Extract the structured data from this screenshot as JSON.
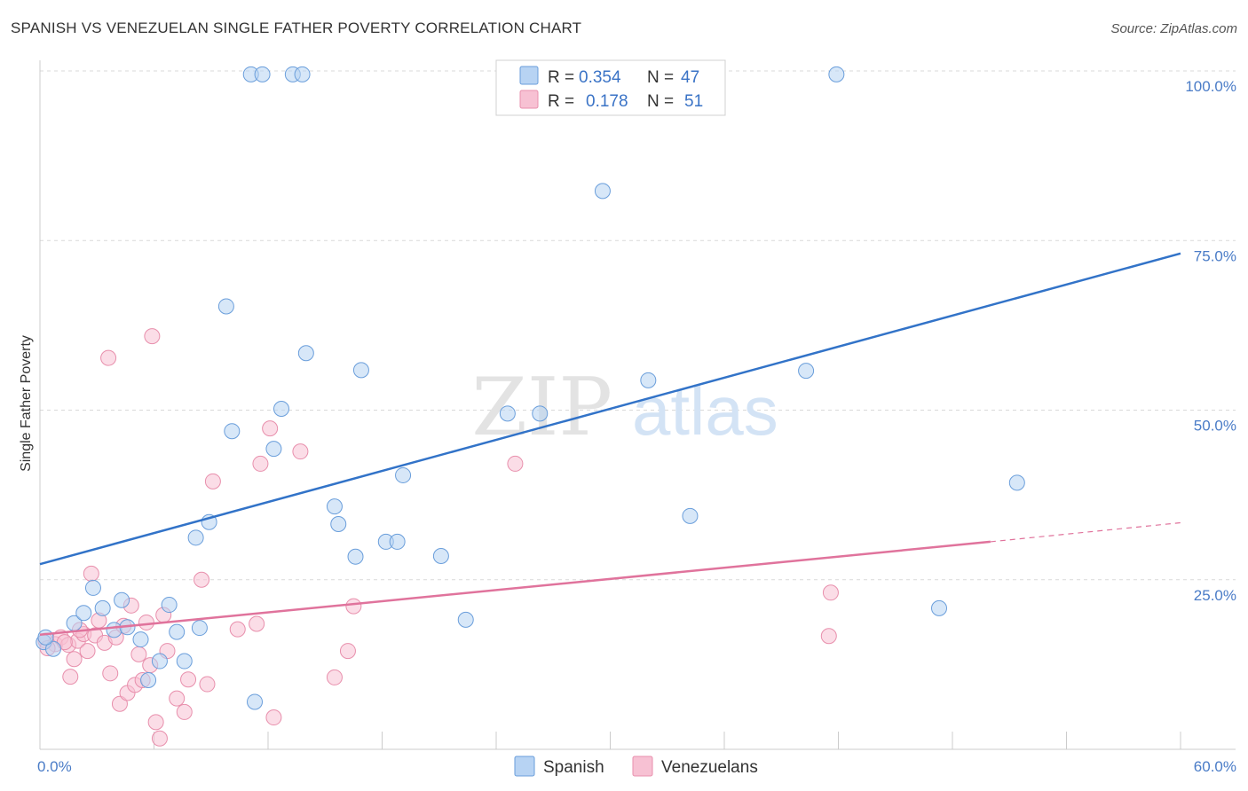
{
  "title": "SPANISH VS VENEZUELAN SINGLE FATHER POVERTY CORRELATION CHART",
  "source": "Source: ZipAtlas.com",
  "watermark": {
    "zip": "ZIP",
    "atlas": "atlas"
  },
  "colors": {
    "spanish_fill": "#b7d3f3",
    "spanish_stroke": "#6a9edb",
    "spanish_line": "#3273c8",
    "venezuelan_fill": "#f7c1d3",
    "venezuelan_stroke": "#e88fac",
    "venezuelan_line": "#e0739c",
    "grid": "#d9d9d9",
    "tick_label": "#4a7cc7"
  },
  "legend": {
    "rows": [
      {
        "r_label": "R =",
        "r_value": "0.354",
        "n_label": "N =",
        "n_value": "47"
      },
      {
        "r_label": "R =",
        "r_value": "0.178",
        "n_label": "N =",
        "n_value": "51"
      }
    ]
  },
  "chart_data": {
    "type": "scatter",
    "title": "SPANISH VS VENEZUELAN SINGLE FATHER POVERTY CORRELATION CHART",
    "xlabel": "",
    "ylabel": "Single Father Poverty",
    "xlim": [
      0,
      60
    ],
    "ylim": [
      0,
      100
    ],
    "x_tick_labels": [
      "0.0%",
      "60.0%"
    ],
    "y_tick_labels": [
      "100.0%",
      "75.0%",
      "50.0%",
      "25.0%"
    ],
    "y_ticks": [
      100,
      75,
      50,
      25
    ],
    "grid": true,
    "legend_position": "top-center",
    "series": [
      {
        "name": "Spanish",
        "points": [
          [
            0.2,
            15.8
          ],
          [
            0.7,
            14.8
          ],
          [
            1.8,
            18.6
          ],
          [
            2.3,
            20.1
          ],
          [
            2.8,
            23.8
          ],
          [
            3.3,
            20.8
          ],
          [
            3.9,
            17.6
          ],
          [
            4.3,
            22.0
          ],
          [
            4.6,
            18.0
          ],
          [
            5.3,
            16.2
          ],
          [
            5.7,
            10.2
          ],
          [
            6.3,
            13.0
          ],
          [
            6.8,
            21.3
          ],
          [
            7.2,
            17.3
          ],
          [
            7.6,
            13.0
          ],
          [
            8.4,
            17.9
          ],
          [
            8.2,
            31.2
          ],
          [
            8.9,
            33.5
          ],
          [
            9.8,
            65.3
          ],
          [
            10.1,
            46.9
          ],
          [
            11.3,
            7.0
          ],
          [
            12.3,
            44.3
          ],
          [
            12.7,
            50.2
          ],
          [
            14.0,
            58.4
          ],
          [
            15.5,
            35.8
          ],
          [
            15.7,
            33.2
          ],
          [
            16.6,
            28.4
          ],
          [
            16.9,
            55.9
          ],
          [
            18.2,
            30.6
          ],
          [
            18.8,
            30.6
          ],
          [
            19.1,
            40.4
          ],
          [
            21.1,
            28.5
          ],
          [
            22.4,
            19.1
          ],
          [
            24.6,
            49.5
          ],
          [
            26.3,
            49.5
          ],
          [
            29.6,
            82.3
          ],
          [
            32.0,
            54.4
          ],
          [
            34.2,
            34.4
          ],
          [
            40.3,
            55.8
          ],
          [
            41.9,
            99.5
          ],
          [
            47.3,
            20.8
          ],
          [
            51.4,
            39.3
          ],
          [
            11.1,
            99.5
          ],
          [
            11.7,
            99.5
          ],
          [
            13.3,
            99.5
          ],
          [
            13.8,
            99.5
          ],
          [
            0.3,
            16.5
          ]
        ],
        "trendline": {
          "x": [
            0,
            60
          ],
          "y": [
            27.3,
            73.1
          ]
        }
      },
      {
        "name": "Venezuelans",
        "points": [
          [
            0.3,
            16.0
          ],
          [
            0.8,
            15.5
          ],
          [
            1.1,
            16.5
          ],
          [
            1.5,
            15.4
          ],
          [
            1.6,
            10.7
          ],
          [
            1.8,
            13.3
          ],
          [
            2.0,
            16.0
          ],
          [
            2.3,
            17.0
          ],
          [
            2.5,
            14.5
          ],
          [
            2.7,
            25.9
          ],
          [
            2.9,
            16.8
          ],
          [
            3.1,
            19.0
          ],
          [
            3.4,
            15.7
          ],
          [
            3.6,
            57.7
          ],
          [
            3.7,
            11.2
          ],
          [
            4.0,
            16.5
          ],
          [
            4.2,
            6.7
          ],
          [
            4.4,
            18.2
          ],
          [
            4.6,
            8.3
          ],
          [
            4.8,
            21.2
          ],
          [
            5.0,
            9.5
          ],
          [
            5.2,
            14.0
          ],
          [
            5.4,
            10.2
          ],
          [
            5.6,
            18.7
          ],
          [
            5.8,
            12.4
          ],
          [
            5.9,
            60.9
          ],
          [
            6.1,
            4.0
          ],
          [
            6.3,
            1.6
          ],
          [
            6.5,
            19.8
          ],
          [
            6.7,
            14.5
          ],
          [
            7.2,
            7.5
          ],
          [
            7.6,
            5.5
          ],
          [
            7.8,
            10.3
          ],
          [
            8.5,
            25.0
          ],
          [
            8.8,
            9.6
          ],
          [
            9.1,
            39.5
          ],
          [
            10.4,
            17.7
          ],
          [
            11.4,
            18.5
          ],
          [
            11.6,
            42.1
          ],
          [
            12.1,
            47.3
          ],
          [
            12.3,
            4.7
          ],
          [
            13.7,
            43.9
          ],
          [
            15.5,
            10.6
          ],
          [
            16.2,
            14.5
          ],
          [
            16.5,
            21.1
          ],
          [
            25.0,
            42.1
          ],
          [
            41.5,
            16.7
          ],
          [
            41.6,
            23.1
          ],
          [
            0.4,
            14.9
          ],
          [
            1.3,
            15.8
          ],
          [
            2.1,
            17.6
          ]
        ],
        "trendline": {
          "x": [
            0,
            50
          ],
          "y": [
            16.9,
            30.6
          ]
        },
        "trendline_dashed": {
          "x": [
            50,
            60
          ],
          "y": [
            30.6,
            33.4
          ]
        }
      }
    ]
  }
}
